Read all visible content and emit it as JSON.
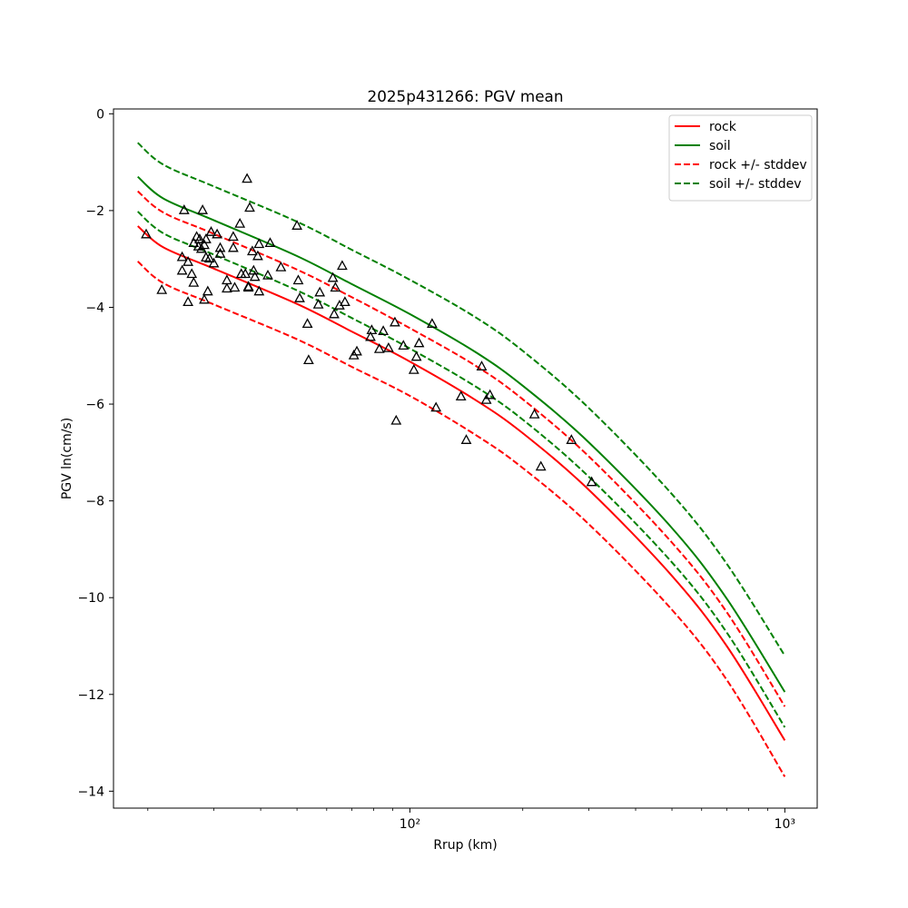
{
  "chart_data": {
    "type": "line",
    "title": "2025p431266: PGV mean",
    "xlabel": "Rrup (km)",
    "ylabel": "PGV ln(cm/s)",
    "xscale": "log",
    "xlim": [
      16.2,
      1220
    ],
    "ylim": [
      -14.35,
      0.1
    ],
    "xticks": [
      {
        "value": 100,
        "label": "10²"
      },
      {
        "value": 1000,
        "label": "10³"
      }
    ],
    "yticks": [
      0,
      -2,
      -4,
      -6,
      -8,
      -10,
      -12,
      -14
    ],
    "yticklabels": [
      "0",
      "−2",
      "−4",
      "−6",
      "−8",
      "−10",
      "−12",
      "−14"
    ],
    "grid": false,
    "legend_position": "top-right",
    "x": [
      18.8,
      22,
      30,
      50,
      70,
      100,
      150,
      200,
      300,
      500,
      700,
      1000
    ],
    "series": [
      {
        "name": "rock",
        "color": "#ff0000",
        "dash": "solid",
        "values": [
          -2.32,
          -2.76,
          -3.2,
          -3.93,
          -4.5,
          -5.12,
          -5.92,
          -6.6,
          -7.77,
          -9.55,
          -11.0,
          -12.95
        ]
      },
      {
        "name": "soil",
        "color": "#008000",
        "dash": "solid",
        "values": [
          -1.3,
          -1.75,
          -2.2,
          -2.94,
          -3.52,
          -4.14,
          -4.93,
          -5.62,
          -6.79,
          -8.56,
          -10.02,
          -11.95
        ]
      },
      {
        "name": "rock +/- stddev",
        "color": "#ff0000",
        "dash": "dashed",
        "legend": true,
        "values": [
          -1.6,
          -2.04,
          -2.48,
          -3.22,
          -3.79,
          -4.43,
          -5.21,
          -5.9,
          -7.08,
          -8.86,
          -10.3,
          -12.25
        ]
      },
      {
        "name": "",
        "color": "#ff0000",
        "dash": "dashed",
        "legend": false,
        "values": [
          -3.05,
          -3.5,
          -3.94,
          -4.66,
          -5.23,
          -5.83,
          -6.64,
          -7.32,
          -8.48,
          -10.25,
          -11.7,
          -13.7
        ]
      },
      {
        "name": "soil +/- stddev",
        "color": "#008000",
        "dash": "dashed",
        "legend": true,
        "values": [
          -0.6,
          -1.05,
          -1.5,
          -2.23,
          -2.81,
          -3.43,
          -4.21,
          -4.9,
          -6.08,
          -7.86,
          -9.3,
          -11.2
        ]
      },
      {
        "name": "",
        "color": "#008000",
        "dash": "dashed",
        "legend": false,
        "values": [
          -2.02,
          -2.47,
          -2.91,
          -3.65,
          -4.22,
          -4.85,
          -5.64,
          -6.32,
          -7.5,
          -9.27,
          -10.72,
          -12.68
        ]
      }
    ],
    "observations": {
      "marker": "triangle-open",
      "color": "#000000",
      "points": [
        [
          19.8,
          -2.5
        ],
        [
          21.8,
          -3.65
        ],
        [
          24.7,
          -3.25
        ],
        [
          24.7,
          -2.97
        ],
        [
          25,
          -2.0
        ],
        [
          25.6,
          -3.07
        ],
        [
          25.6,
          -3.9
        ],
        [
          26.2,
          -3.32
        ],
        [
          26.5,
          -2.68
        ],
        [
          26.5,
          -3.5
        ],
        [
          27,
          -2.55
        ],
        [
          27.3,
          -2.75
        ],
        [
          27.5,
          -2.6
        ],
        [
          27.8,
          -2.8
        ],
        [
          28,
          -2.0
        ],
        [
          28.3,
          -2.72
        ],
        [
          28.3,
          -3.85
        ],
        [
          28.6,
          -2.6
        ],
        [
          28.6,
          -2.98
        ],
        [
          28.9,
          -3.68
        ],
        [
          29.2,
          -3.0
        ],
        [
          29.5,
          -2.45
        ],
        [
          30,
          -3.1
        ],
        [
          30.6,
          -2.5
        ],
        [
          31.2,
          -2.9
        ],
        [
          31.2,
          -2.78
        ],
        [
          32.5,
          -3.45
        ],
        [
          32.5,
          -3.62
        ],
        [
          33.8,
          -2.55
        ],
        [
          33.8,
          -2.78
        ],
        [
          34.1,
          -3.6
        ],
        [
          35.2,
          -2.28
        ],
        [
          35.5,
          -3.32
        ],
        [
          36.4,
          -3.32
        ],
        [
          36.8,
          -1.35
        ],
        [
          37.1,
          -3.58
        ],
        [
          37.1,
          -3.6
        ],
        [
          37.4,
          -1.95
        ],
        [
          38,
          -2.85
        ],
        [
          38.3,
          -3.25
        ],
        [
          38.6,
          -3.38
        ],
        [
          39.3,
          -2.95
        ],
        [
          39.6,
          -3.68
        ],
        [
          39.6,
          -2.7
        ],
        [
          41.8,
          -3.35
        ],
        [
          42.4,
          -2.68
        ],
        [
          45.3,
          -3.18
        ],
        [
          50,
          -2.32
        ],
        [
          50.4,
          -3.45
        ],
        [
          50.8,
          -3.82
        ],
        [
          53.3,
          -4.35
        ],
        [
          53.7,
          -5.1
        ],
        [
          57,
          -3.95
        ],
        [
          57.5,
          -3.7
        ],
        [
          62.3,
          -3.4
        ],
        [
          62.8,
          -4.15
        ],
        [
          63.3,
          -3.6
        ],
        [
          64.9,
          -3.97
        ],
        [
          66,
          -3.15
        ],
        [
          67.1,
          -3.9
        ],
        [
          70.9,
          -5.0
        ],
        [
          72.2,
          -4.92
        ],
        [
          78.5,
          -4.62
        ],
        [
          79.1,
          -4.48
        ],
        [
          82.9,
          -4.87
        ],
        [
          84.9,
          -4.5
        ],
        [
          87.7,
          -4.85
        ],
        [
          91.2,
          -4.32
        ],
        [
          91.9,
          -6.35
        ],
        [
          96.1,
          -4.8
        ],
        [
          102.5,
          -5.3
        ],
        [
          104.1,
          -5.03
        ],
        [
          105.8,
          -4.75
        ],
        [
          114.6,
          -4.35
        ],
        [
          117.4,
          -6.08
        ],
        [
          136.9,
          -5.85
        ],
        [
          141.4,
          -6.75
        ],
        [
          155.4,
          -5.23
        ],
        [
          159.9,
          -5.92
        ],
        [
          163.5,
          -5.82
        ],
        [
          214.9,
          -6.22
        ],
        [
          223.6,
          -7.3
        ],
        [
          269.6,
          -6.75
        ],
        [
          305.4,
          -7.62
        ]
      ]
    }
  }
}
